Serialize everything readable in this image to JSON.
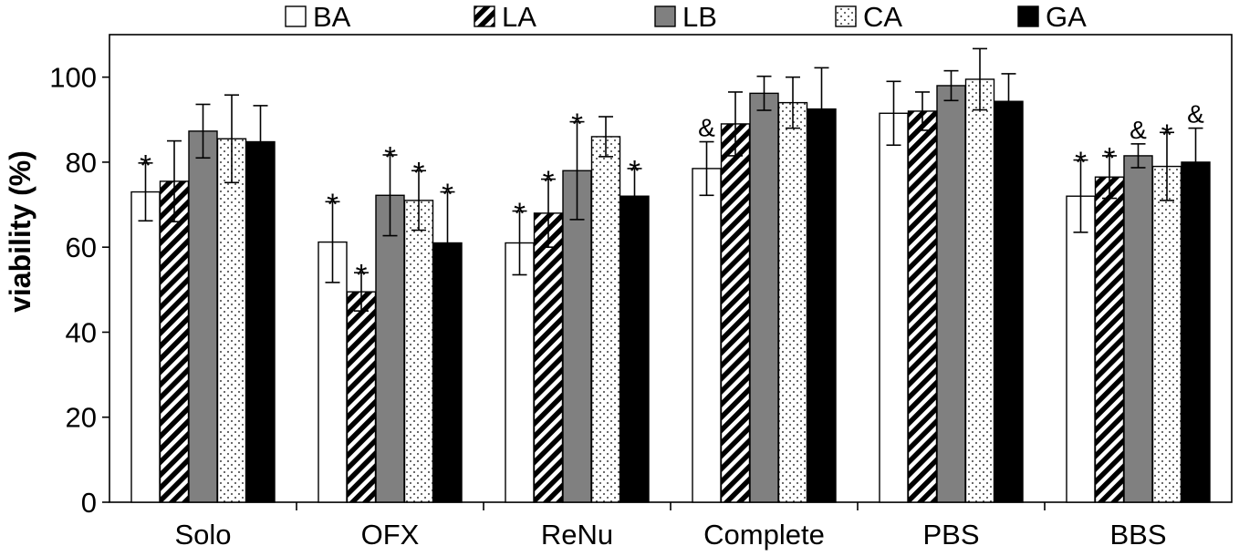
{
  "chart_data": {
    "type": "bar",
    "title": "",
    "xlabel": "",
    "ylabel": "viability (%)",
    "ylim": [
      0,
      110
    ],
    "yticks": [
      0,
      20,
      40,
      60,
      80,
      100
    ],
    "grid": false,
    "legend_position": "top",
    "categories": [
      "Solo",
      "OFX",
      "ReNu",
      "Complete",
      "PBS",
      "BBS"
    ],
    "series": [
      {
        "name": "BA",
        "pattern": "white",
        "values": [
          73,
          61.2,
          61,
          78.5,
          91.5,
          72
        ],
        "errors": [
          6.8,
          9.5,
          7.5,
          6.3,
          7.5,
          8.5
        ],
        "annotations": [
          "*",
          "*",
          "*",
          "&",
          "",
          "*"
        ]
      },
      {
        "name": "LA",
        "pattern": "diagonal-stripes",
        "values": [
          75.5,
          49.5,
          68,
          89,
          92,
          76.5
        ],
        "errors": [
          9.5,
          4.5,
          8,
          7.5,
          4.5,
          5
        ],
        "annotations": [
          "",
          "*",
          "*",
          "",
          "",
          "*"
        ]
      },
      {
        "name": "LB",
        "pattern": "gray",
        "values": [
          87.3,
          72.2,
          78,
          96.2,
          98,
          81.5
        ],
        "errors": [
          6.3,
          9.5,
          11.5,
          4,
          3.5,
          2.8
        ],
        "annotations": [
          "",
          "*",
          "*",
          "",
          "",
          "&"
        ]
      },
      {
        "name": "CA",
        "pattern": "dots",
        "values": [
          85.5,
          71,
          86,
          94,
          99.5,
          79
        ],
        "errors": [
          10.3,
          7,
          4.7,
          6,
          7.2,
          8
        ],
        "annotations": [
          "",
          "*",
          "",
          "",
          "",
          "*"
        ]
      },
      {
        "name": "GA",
        "pattern": "black",
        "values": [
          84.8,
          61,
          72,
          92.5,
          94.3,
          80
        ],
        "errors": [
          8.5,
          12,
          6.5,
          9.7,
          6.5,
          8
        ],
        "annotations": [
          "",
          "*",
          "*",
          "",
          "",
          "&"
        ]
      }
    ]
  }
}
